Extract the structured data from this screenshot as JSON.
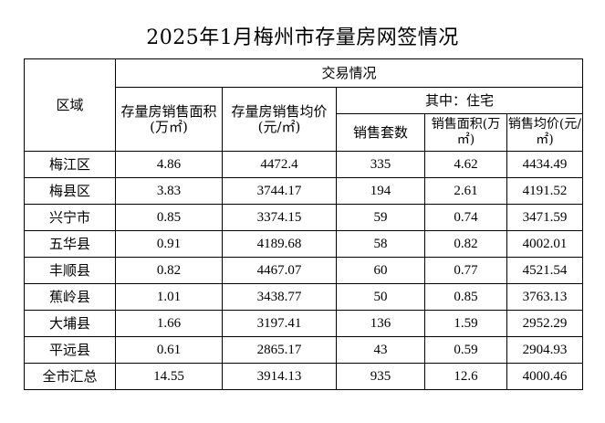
{
  "title": "2025年1月梅州市存量房网签情况",
  "headers": {
    "region": "区域",
    "transaction": "交易情况",
    "area_total": "存量房销售面积(万㎡)",
    "price_total": "存量房销售均价(元/㎡)",
    "residential": "其中：住宅",
    "units": "销售套数",
    "area_res": "销售面积(万㎡)",
    "price_res": "销售均价(元/㎡)"
  },
  "rows": [
    {
      "region": "梅江区",
      "area": "4.86",
      "price": "4472.4",
      "units": "335",
      "res_area": "4.62",
      "res_price": "4434.49"
    },
    {
      "region": "梅县区",
      "area": "3.83",
      "price": "3744.17",
      "units": "194",
      "res_area": "2.61",
      "res_price": "4191.52"
    },
    {
      "region": "兴宁市",
      "area": "0.85",
      "price": "3374.15",
      "units": "59",
      "res_area": "0.74",
      "res_price": "3471.59"
    },
    {
      "region": "五华县",
      "area": "0.91",
      "price": "4189.68",
      "units": "58",
      "res_area": "0.82",
      "res_price": "4002.01"
    },
    {
      "region": "丰顺县",
      "area": "0.82",
      "price": "4467.07",
      "units": "60",
      "res_area": "0.77",
      "res_price": "4521.54"
    },
    {
      "region": "蕉岭县",
      "area": "1.01",
      "price": "3438.77",
      "units": "50",
      "res_area": "0.85",
      "res_price": "3763.13"
    },
    {
      "region": "大埔县",
      "area": "1.66",
      "price": "3197.41",
      "units": "136",
      "res_area": "1.59",
      "res_price": "2952.29"
    },
    {
      "region": "平远县",
      "area": "0.61",
      "price": "2865.17",
      "units": "43",
      "res_area": "0.59",
      "res_price": "2904.93"
    },
    {
      "region": "全市汇总",
      "area": "14.55",
      "price": "3914.13",
      "units": "935",
      "res_area": "12.6",
      "res_price": "4000.46"
    }
  ]
}
